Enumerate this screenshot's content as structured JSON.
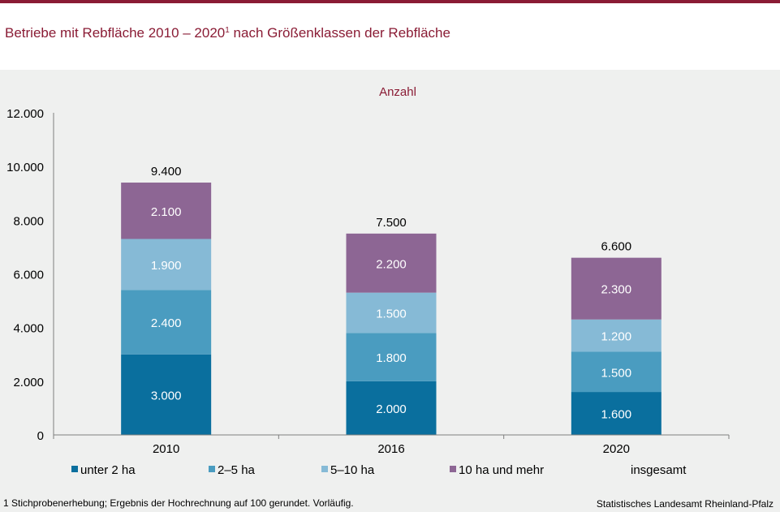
{
  "title": {
    "text": "Betriebe mit Rebfläche 2010 – 2020",
    "superscript": "1",
    "rest": " nach Größenklassen der Rebfläche"
  },
  "footnote": "1 Stichprobenerhebung;  Ergebnis der Hochrechnung  auf 100 gerundet.  Vorläufig.",
  "source": "Statistisches Landesamt Rheinland-Pfalz",
  "colors": {
    "accent": "#8a1c35",
    "panel": "#eff0ef",
    "series": [
      "#0a6f9e",
      "#4a9cc0",
      "#86bad6",
      "#8d6694"
    ]
  },
  "chart_data": {
    "type": "bar",
    "stacked": true,
    "unit_label": "Anzahl",
    "categories": [
      "2010",
      "2016",
      "2020"
    ],
    "series": [
      {
        "name": "unter 2 ha",
        "values": [
          3000,
          2000,
          1600
        ]
      },
      {
        "name": "2–5 ha",
        "values": [
          2400,
          1800,
          1500
        ]
      },
      {
        "name": "5–10 ha",
        "values": [
          1900,
          1500,
          1200
        ]
      },
      {
        "name": "10 ha und mehr",
        "values": [
          2100,
          2200,
          2300
        ]
      }
    ],
    "totals": {
      "name": "insgesamt",
      "values": [
        9400,
        7500,
        6600
      ]
    },
    "value_labels": {
      "series": [
        [
          "3.000",
          "2.000",
          "1.600"
        ],
        [
          "2.400",
          "1.800",
          "1.500"
        ],
        [
          "1.900",
          "1.500",
          "1.200"
        ],
        [
          "2.100",
          "2.200",
          "2.300"
        ]
      ],
      "totals": [
        "9.400",
        "7.500",
        "6.600"
      ]
    },
    "ylim": [
      0,
      12000
    ],
    "yticks": [
      0,
      2000,
      4000,
      6000,
      8000,
      10000,
      12000
    ],
    "ytick_labels": [
      "0",
      "2.000",
      "4.000",
      "6.000",
      "8.000",
      "10.000",
      "12.000"
    ],
    "grid": false,
    "legend_position": "bottom"
  }
}
